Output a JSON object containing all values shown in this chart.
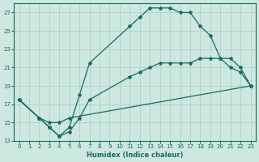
{
  "title": "",
  "xlabel": "Humidex (Indice chaleur)",
  "ylabel": "",
  "xlim": [
    -0.5,
    23.5
  ],
  "ylim": [
    13,
    28
  ],
  "yticks": [
    13,
    15,
    17,
    19,
    21,
    23,
    25,
    27
  ],
  "xticks": [
    0,
    1,
    2,
    3,
    4,
    5,
    6,
    7,
    8,
    9,
    10,
    11,
    12,
    13,
    14,
    15,
    16,
    17,
    18,
    19,
    20,
    21,
    22,
    23
  ],
  "background_color": "#cce8e0",
  "grid_color": "#aaccC4",
  "line_color": "#1a6b5a",
  "series": [
    {
      "x": [
        0,
        2,
        3,
        4,
        5,
        23
      ],
      "y": [
        17.5,
        15.5,
        15.0,
        15.0,
        15.5,
        19.0
      ]
    },
    {
      "x": [
        0,
        2,
        3,
        4,
        5,
        6,
        7,
        11,
        12,
        13,
        14,
        15,
        16,
        17,
        18,
        19,
        20,
        21,
        22,
        23
      ],
      "y": [
        17.5,
        15.5,
        14.5,
        13.5,
        14.5,
        18.0,
        21.5,
        25.5,
        26.5,
        27.5,
        27.5,
        27.5,
        27.0,
        27.0,
        25.5,
        24.5,
        22.0,
        21.0,
        20.5,
        19.0
      ]
    },
    {
      "x": [
        0,
        2,
        3,
        4,
        5,
        6,
        7,
        11,
        12,
        13,
        14,
        15,
        16,
        17,
        18,
        19,
        20,
        21,
        22,
        23
      ],
      "y": [
        17.5,
        15.5,
        14.5,
        13.5,
        14.0,
        15.5,
        17.5,
        20.0,
        20.5,
        21.0,
        21.5,
        21.5,
        21.5,
        21.5,
        22.0,
        22.0,
        22.0,
        22.0,
        21.0,
        19.0
      ]
    }
  ]
}
